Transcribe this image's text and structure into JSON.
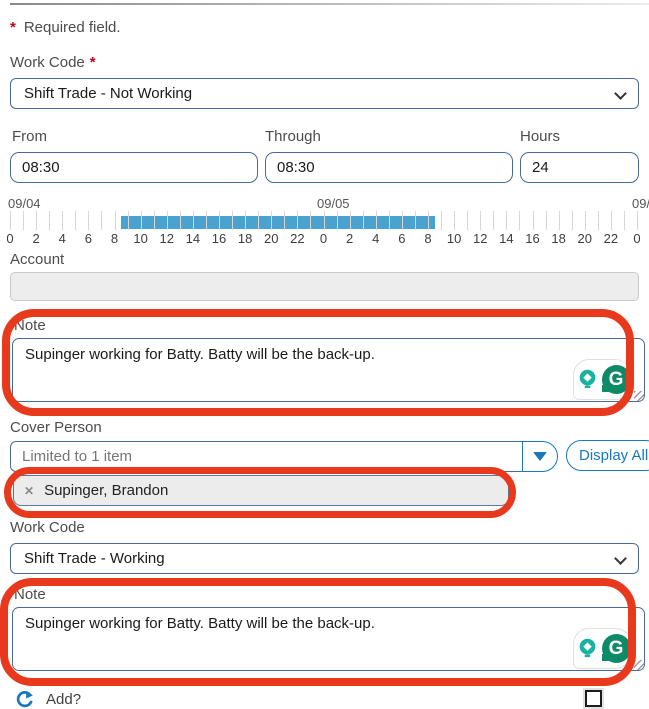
{
  "colors": {
    "accent_blue": "#1778be",
    "annotation_red": "#e8391d",
    "timeline_bar_blue": "#4aa2cf",
    "grammarly_green": "#0d8a68",
    "grammarly_teal": "#17b3a0",
    "required_red": "#c00323"
  },
  "required_note": {
    "asterisk": "*",
    "text": "Required field."
  },
  "work_code_top": {
    "label": "Work Code",
    "asterisk": "*",
    "value": "Shift Trade - Not Working"
  },
  "time_fields": {
    "from": {
      "label": "From",
      "value": "08:30"
    },
    "through": {
      "label": "Through",
      "value": "08:30"
    },
    "hours": {
      "label": "Hours",
      "value": "24"
    }
  },
  "timeline": {
    "date_labels": [
      "09/04",
      "09/05",
      "09/"
    ],
    "total_hours": 48,
    "tick_every_hours": 1,
    "label_every_hours": 2,
    "hour_label_modulo": 24,
    "bar": {
      "start_hour": 8.5,
      "end_hour": 32.5
    }
  },
  "account": {
    "label": "Account",
    "value": ""
  },
  "note_first": {
    "label": "Note",
    "value": "Supinger working for Batty. Batty will be the back-up."
  },
  "cover_person": {
    "label": "Cover Person",
    "input_placeholder": "Limited to 1 item",
    "display_all_label": "Display All",
    "selected_chip": {
      "remove_glyph": "✕",
      "name": "Supinger, Brandon"
    }
  },
  "work_code_bottom": {
    "label": "Work Code",
    "value": "Shift Trade - Working"
  },
  "note_second": {
    "label": "Note",
    "value": "Supinger working for Batty. Batty will be the back-up."
  },
  "grammarly": {
    "logo_letter": "G"
  },
  "footer": {
    "add_label": "Add?",
    "checkbox_checked": false
  }
}
